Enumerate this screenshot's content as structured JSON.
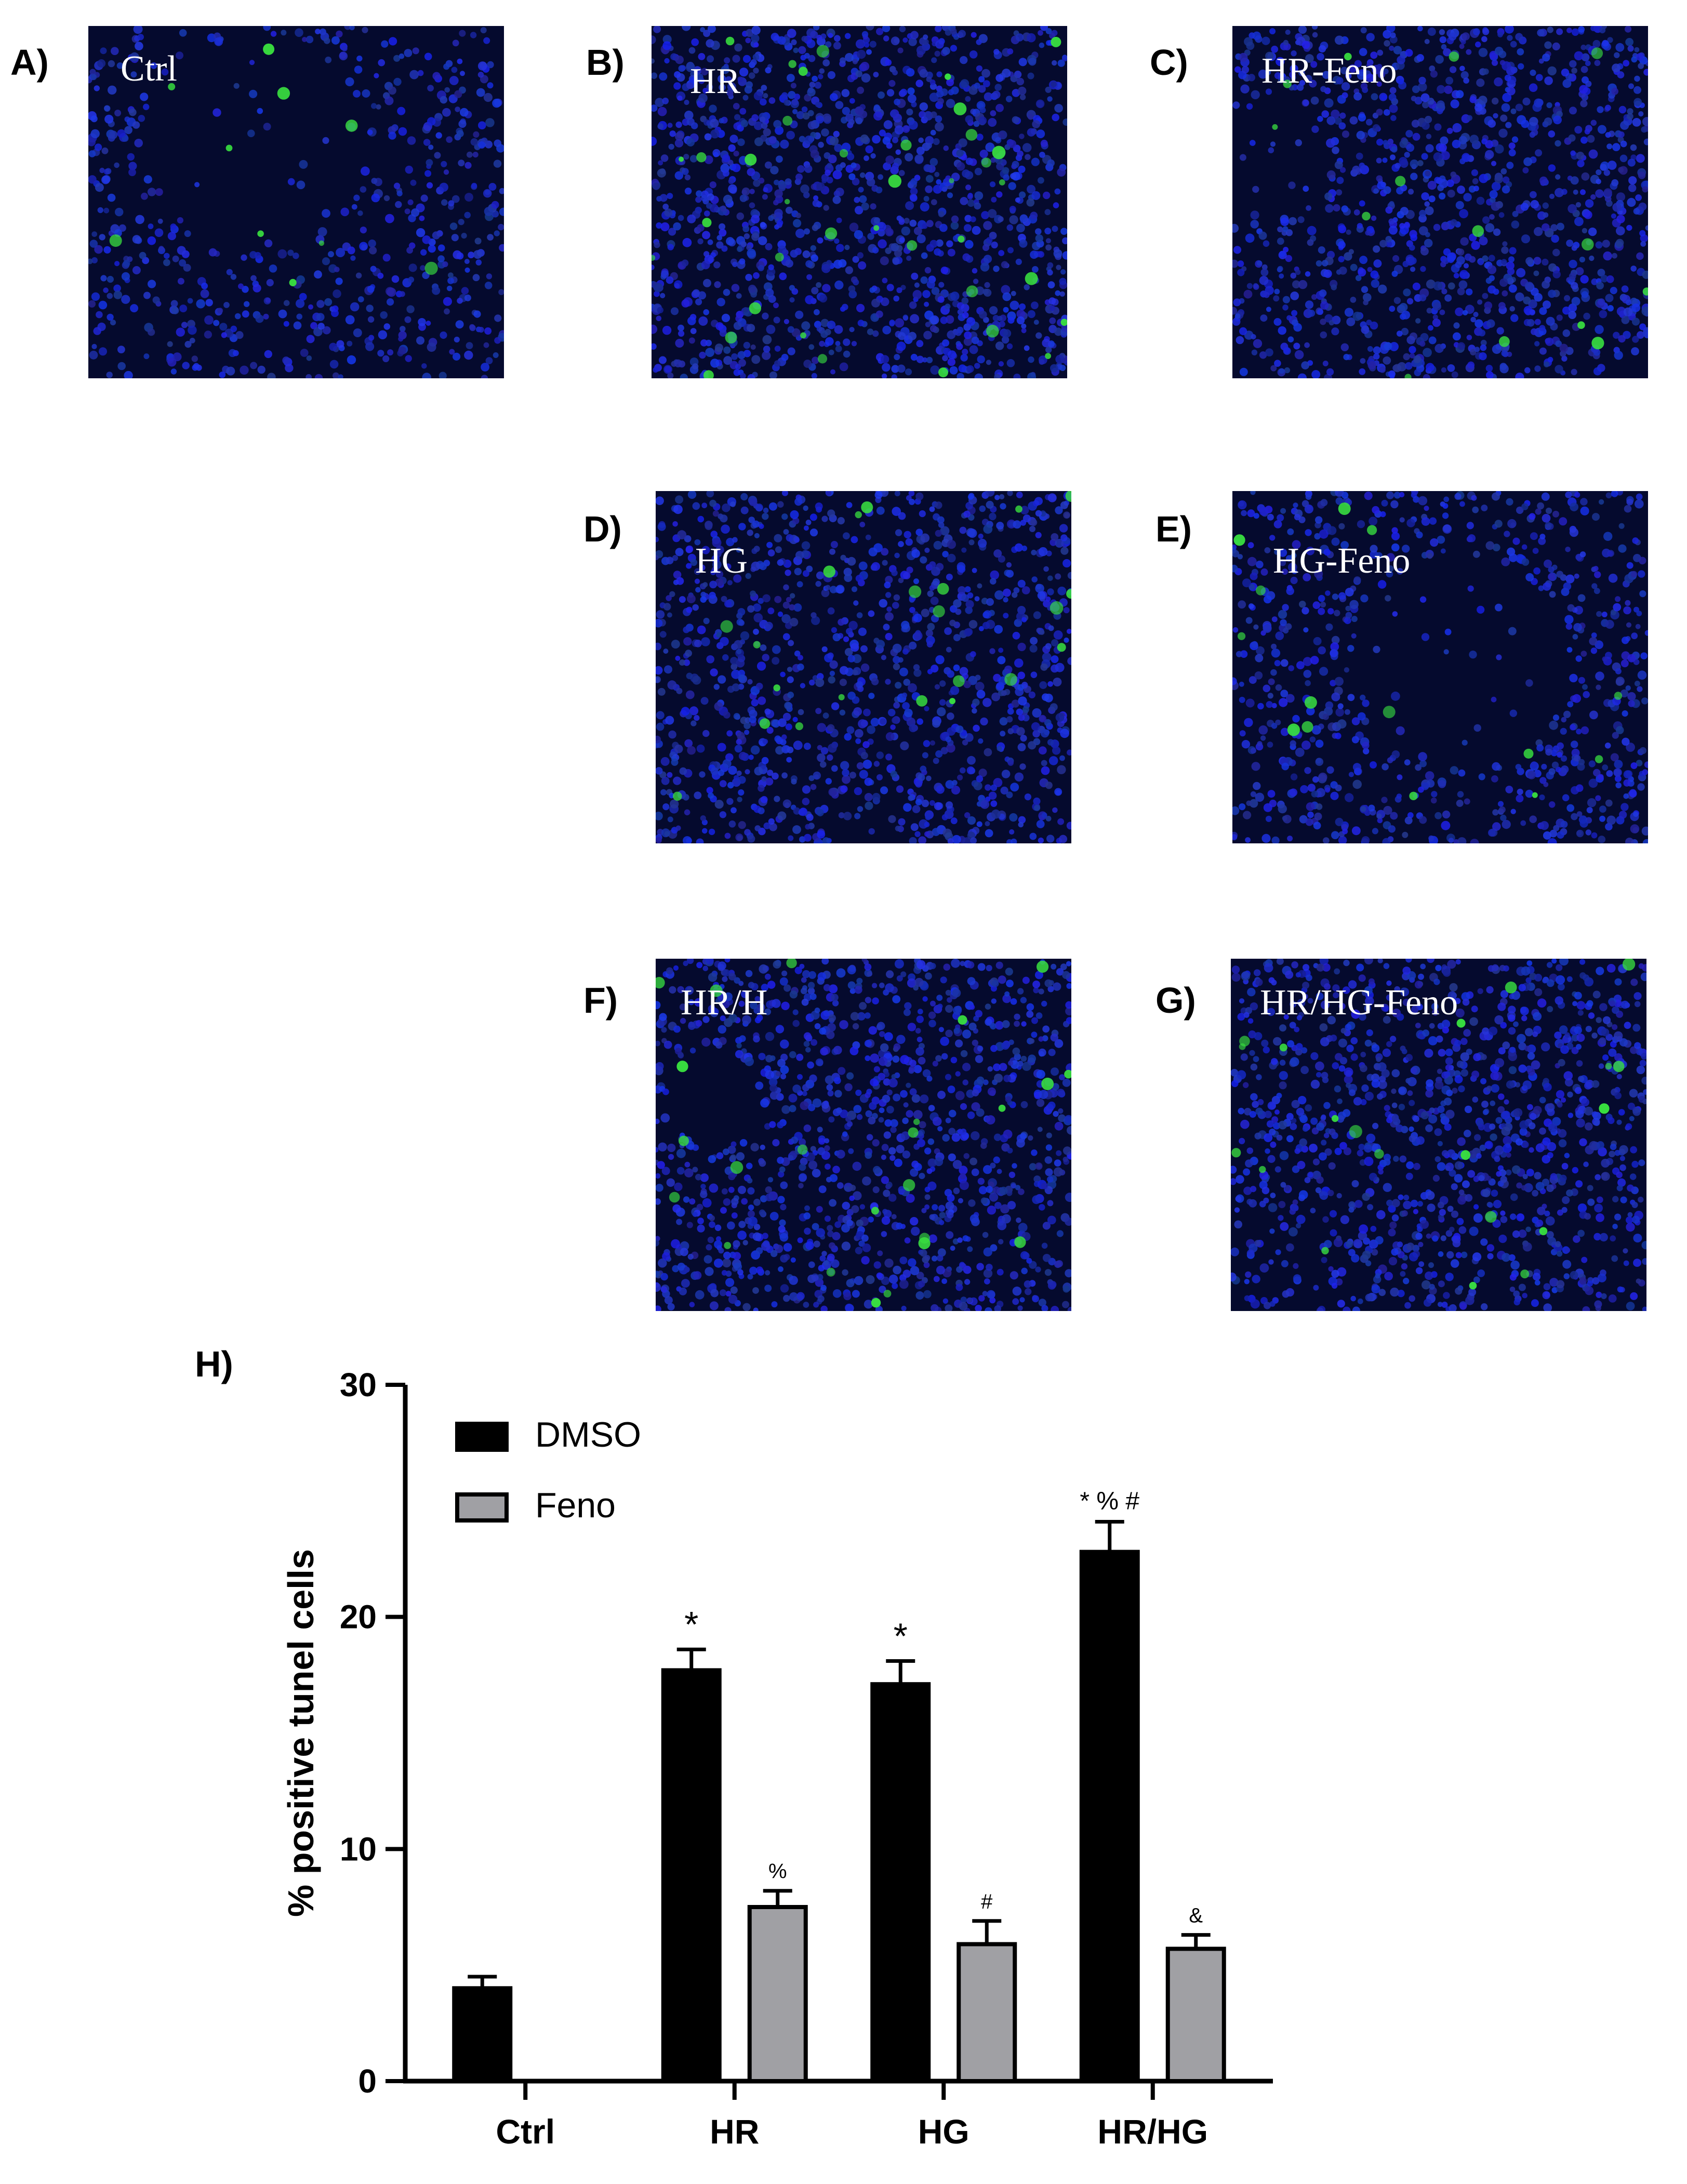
{
  "panels": [
    {
      "letter": "A)",
      "label": "Ctrl"
    },
    {
      "letter": "B)",
      "label": "HR"
    },
    {
      "letter": "C)",
      "label": "HR-Feno"
    },
    {
      "letter": "D)",
      "label": "HG"
    },
    {
      "letter": "E)",
      "label": "HG-Feno"
    },
    {
      "letter": "F)",
      "label": "HR/H"
    },
    {
      "letter": "G)",
      "label": "HR/HG-Feno"
    }
  ],
  "chart_letter": "H)",
  "colors": {
    "dmso": "#000000",
    "feno": "#a0a0a4",
    "nuclei": "#1e2cc8",
    "tunel": "#39e040",
    "background": "#050a2e"
  },
  "chart_data": {
    "type": "bar",
    "categories": [
      "Ctrl",
      "HR",
      "HG",
      "HR/HG"
    ],
    "ylabel": "% positive tunel cells",
    "xlabel": "",
    "ylim": [
      0,
      30
    ],
    "yticks": [
      0,
      10,
      20,
      30
    ],
    "legend_position": "top-left",
    "series": [
      {
        "name": "DMSO",
        "values": [
          4.0,
          17.7,
          17.1,
          22.8
        ],
        "errors": [
          0.5,
          0.9,
          1.0,
          1.3
        ],
        "annotations": [
          "",
          "*",
          "*",
          "* % #"
        ]
      },
      {
        "name": "Feno",
        "values": [
          null,
          7.5,
          5.9,
          5.7
        ],
        "errors": [
          null,
          0.7,
          1.0,
          0.6
        ],
        "annotations": [
          "",
          "%",
          "#",
          "&"
        ]
      }
    ]
  }
}
